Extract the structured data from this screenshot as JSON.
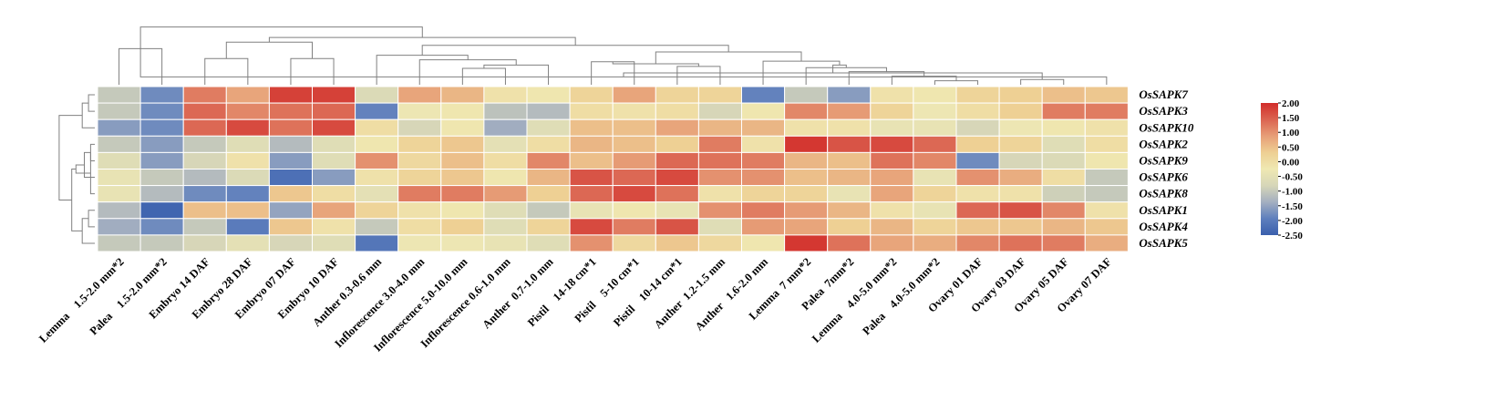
{
  "chart_data": {
    "type": "heatmap",
    "rows": [
      "OsSAPK7",
      "OsSAPK3",
      "OsSAPK10",
      "OsSAPK2",
      "OsSAPK9",
      "OsSAPK6",
      "OsSAPK8",
      "OsSAPK1",
      "OsSAPK4",
      "OsSAPK5"
    ],
    "columns": [
      "Lemma    1.5-2.0 mm*2",
      "Palea    1.5-2.0 mm*2",
      "Embryo 14 DAF",
      "Embryo 28 DAF",
      "Embryo 07 DAF",
      "Embryo 10 DAF",
      "Anther 0.3-0.6 mm",
      "Inflorescence 3.0-4.0 mm",
      "Inflorescence 5.0-10.0 mm",
      "Inflorescence 0.6-1.0 mm",
      "Anther  0.7-1.0 mm",
      "Pistil    14-18 cm*1",
      "Pistil    5-10 cm*1",
      "Pistil    10-14 cm*1",
      "Anther  1.2-1.5 mm",
      "Anther   1.6-2.0 mm",
      "Lemma  7 mm*2",
      "Palea  7mm*2",
      "Lemma    4.0-5.0 mm*2",
      "Palea    4.0-5.0 mm*2",
      "Ovary 01 DAF",
      "Ovary 03 DAF",
      "Ovary 05 DAF",
      "Ovary 07 DAF"
    ],
    "values": [
      [
        -1.0,
        -1.8,
        1.2,
        0.8,
        1.8,
        1.8,
        -0.7,
        0.8,
        0.6,
        -0.1,
        -0.2,
        0.2,
        0.8,
        0.2,
        0.2,
        -1.9,
        -1.0,
        -1.6,
        -0.1,
        -0.2,
        0.2,
        0.3,
        0.5,
        0.4
      ],
      [
        -1.0,
        -1.8,
        1.4,
        1.1,
        1.3,
        1.4,
        -1.9,
        -0.3,
        -0.2,
        -1.1,
        -1.2,
        0.0,
        -0.1,
        0.0,
        -0.8,
        -0.2,
        1.1,
        0.9,
        0.2,
        -0.3,
        0.0,
        0.3,
        1.2,
        1.2
      ],
      [
        -1.6,
        -1.8,
        1.4,
        1.7,
        1.3,
        1.7,
        0.0,
        -0.8,
        -0.2,
        -1.4,
        -0.6,
        0.5,
        0.5,
        0.8,
        0.6,
        0.6,
        -0.1,
        -0.1,
        -0.4,
        -0.4,
        -0.8,
        -0.3,
        -0.2,
        -0.1
      ],
      [
        -1.0,
        -1.6,
        -1.0,
        -0.6,
        -1.2,
        -0.6,
        -0.2,
        0.2,
        0.4,
        -0.5,
        0.0,
        0.6,
        0.5,
        0.3,
        1.2,
        -0.1,
        1.9,
        1.6,
        1.7,
        1.4,
        0.3,
        0.2,
        -0.6,
        0.0
      ],
      [
        -0.6,
        -1.6,
        -0.8,
        -0.1,
        -1.6,
        -0.6,
        1.0,
        0.1,
        0.5,
        0.0,
        1.1,
        0.5,
        0.9,
        1.4,
        1.3,
        1.2,
        0.6,
        0.5,
        1.3,
        1.1,
        -1.8,
        -0.8,
        -0.7,
        -0.2
      ],
      [
        -0.4,
        -1.0,
        -1.2,
        -0.7,
        -2.2,
        -1.6,
        -0.1,
        0.2,
        0.4,
        -0.2,
        0.6,
        1.6,
        1.4,
        1.7,
        1.0,
        1.0,
        0.5,
        0.6,
        0.8,
        -0.4,
        1.0,
        0.7,
        0.0,
        -1.0
      ],
      [
        -0.4,
        -1.2,
        -1.8,
        -1.9,
        0.4,
        0.0,
        -0.5,
        1.2,
        1.2,
        0.9,
        0.3,
        1.4,
        1.7,
        1.3,
        -0.1,
        0.2,
        0.2,
        -0.4,
        0.8,
        0.2,
        -0.1,
        -0.1,
        -0.9,
        -1.0
      ],
      [
        -1.2,
        -2.4,
        0.5,
        0.5,
        -1.5,
        0.8,
        0.2,
        -0.1,
        -0.2,
        -0.6,
        -1.0,
        -0.4,
        -0.2,
        -0.4,
        1.0,
        1.2,
        0.9,
        0.6,
        -0.1,
        -0.4,
        1.4,
        1.6,
        1.1,
        -0.1
      ],
      [
        -1.4,
        -1.8,
        -1.0,
        -2.0,
        0.4,
        -0.1,
        -1.0,
        0.0,
        0.3,
        -0.6,
        0.2,
        1.7,
        1.2,
        1.6,
        -0.6,
        0.9,
        0.8,
        0.3,
        0.6,
        0.2,
        0.4,
        0.4,
        0.6,
        0.4
      ],
      [
        -1.0,
        -1.0,
        -0.8,
        -0.5,
        -0.8,
        -0.6,
        -2.1,
        -0.3,
        -0.3,
        -0.4,
        -0.6,
        1.0,
        0.1,
        0.4,
        0.1,
        -0.2,
        1.9,
        1.3,
        0.8,
        0.7,
        1.1,
        1.3,
        1.2,
        0.7
      ]
    ],
    "color_scale": {
      "stops": [
        "#3a5fad",
        "#5e7fbd",
        "#a4afc0",
        "#d6d6b8",
        "#efe8b2",
        "#eecf93",
        "#e79e77",
        "#db6451",
        "#d22d2a"
      ],
      "range": [
        -2.5,
        2.0
      ],
      "tick_labels": [
        "2.00",
        "1.50",
        "1.00",
        "0.50",
        "0.00",
        "-0.50",
        "-1.00",
        "-1.50",
        "-2.00",
        "-2.50"
      ],
      "tick_values": [
        2.0,
        1.5,
        1.0,
        0.5,
        0.0,
        -0.5,
        -1.0,
        -1.5,
        -2.0,
        -2.5
      ]
    },
    "row_dendrogram": [
      [
        0,
        1,
        0.15
      ],
      [
        10,
        2,
        0.3
      ],
      [
        3,
        4,
        0.1
      ],
      [
        12,
        5,
        0.25
      ],
      [
        12,
        6,
        0.1
      ],
      [
        13,
        14,
        0.45
      ],
      [
        7,
        8,
        0.15
      ],
      [
        16,
        9,
        0.3
      ],
      [
        15,
        17,
        0.55
      ],
      [
        11,
        18,
        0.85
      ]
    ],
    "col_dendrogram": [
      [
        0,
        1,
        0.55
      ],
      [
        2,
        3,
        0.4
      ],
      [
        4,
        5,
        0.4
      ],
      [
        25,
        26,
        0.65
      ],
      [
        8,
        9,
        0.25
      ],
      [
        10,
        28,
        0.3
      ],
      [
        7,
        29,
        0.38
      ],
      [
        11,
        12,
        0.35
      ],
      [
        13,
        14,
        0.28
      ],
      [
        31,
        32,
        0.32
      ],
      [
        30,
        6,
        0.45
      ],
      [
        19,
        20,
        0.06
      ],
      [
        18,
        35,
        0.13
      ],
      [
        17,
        36,
        0.2
      ],
      [
        16,
        37,
        0.26
      ],
      [
        21,
        22,
        0.08
      ],
      [
        23,
        24,
        0.12
      ],
      [
        39,
        40,
        0.18
      ],
      [
        38,
        41,
        0.3
      ],
      [
        15,
        42,
        0.36
      ],
      [
        33,
        43,
        0.5
      ],
      [
        34,
        44,
        0.6
      ],
      [
        27,
        45,
        0.72
      ],
      [
        24,
        46,
        0.88
      ]
    ],
    "title": "",
    "xlabel": "",
    "ylabel": ""
  }
}
